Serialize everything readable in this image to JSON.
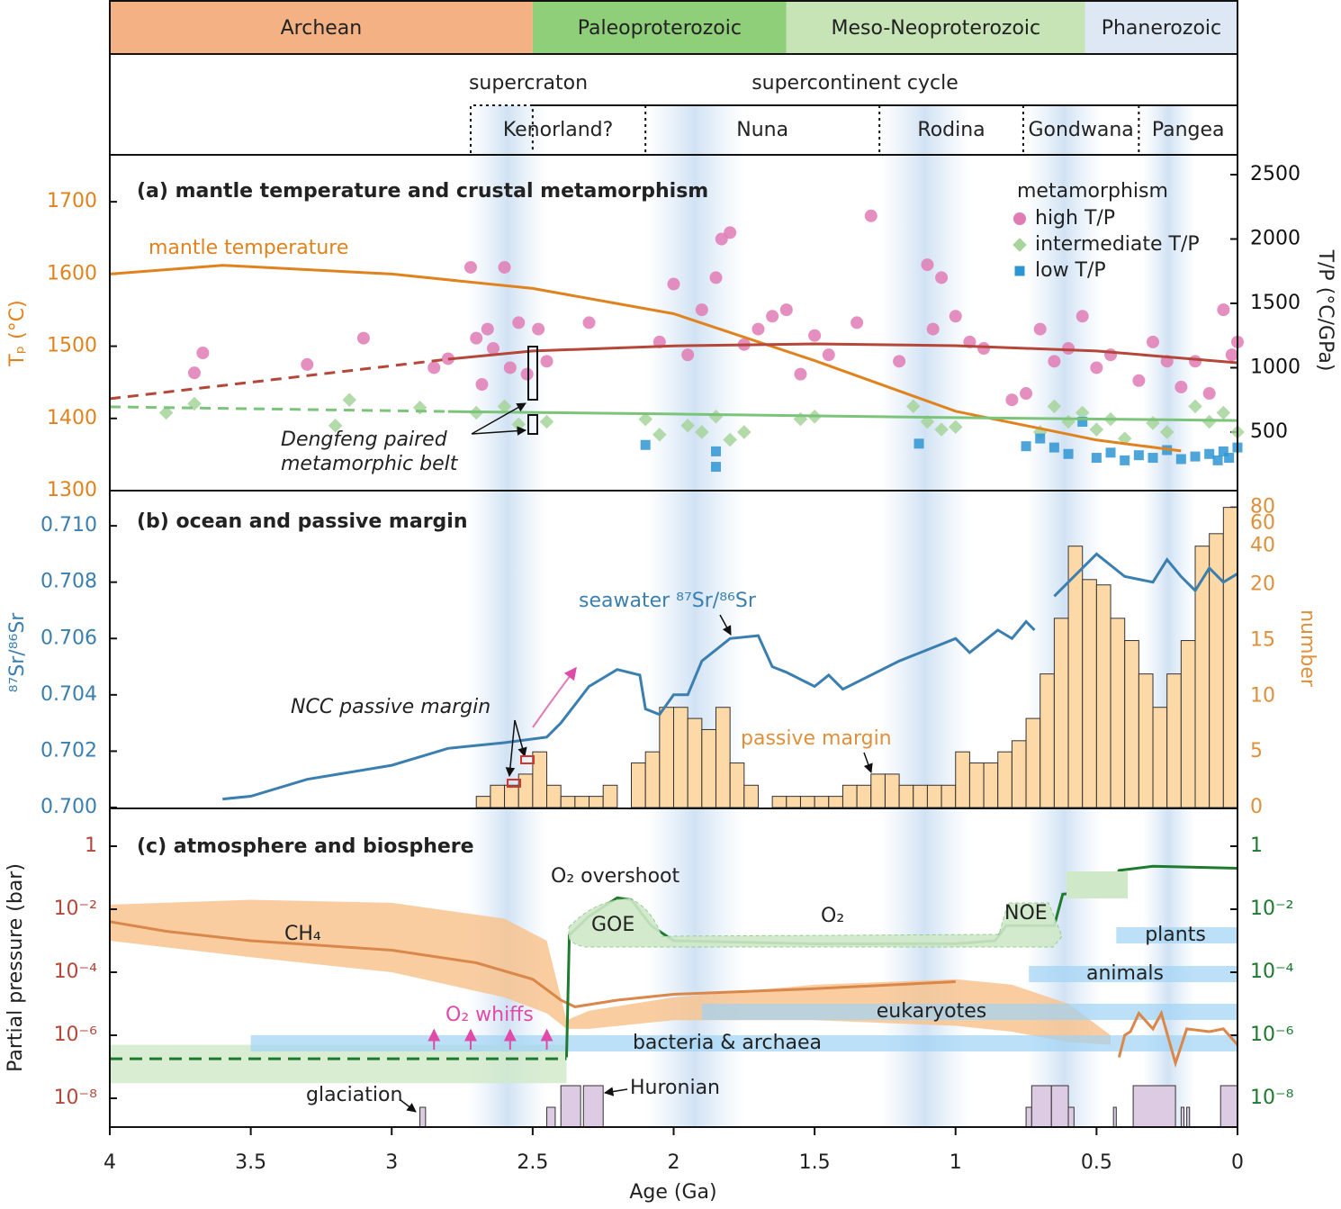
{
  "chart_data": [
    {
      "type": "timeline",
      "eras": [
        {
          "name": "Archean",
          "start": 4,
          "end": 2.5,
          "color": "#f4b183"
        },
        {
          "name": "Paleoproterozoic",
          "start": 2.5,
          "end": 1.6,
          "color": "#8fcf79"
        },
        {
          "name": "Meso-Neoproterozoic",
          "start": 1.6,
          "end": 0.54,
          "color": "#c6e4b5"
        },
        {
          "name": "Phanerozoic",
          "start": 0.54,
          "end": 0,
          "color": "#dde8f4"
        }
      ],
      "supercraton": {
        "label": "supercraton",
        "start": 2.72,
        "end": 2.5
      },
      "cycle_label": "supercontinent cycle",
      "supercontinents": [
        {
          "name": "Kenorland?",
          "start": 2.72,
          "end": 2.1
        },
        {
          "name": "Nuna",
          "start": 2.1,
          "end": 1.27
        },
        {
          "name": "Rodina",
          "start": 1.27,
          "end": 0.76
        },
        {
          "name": "Gondwana",
          "start": 0.76,
          "end": 0.35
        },
        {
          "name": "Pangea",
          "start": 0.35,
          "end": 0
        }
      ],
      "bands": [
        [
          2.73,
          2.45
        ],
        [
          2.1,
          1.75
        ],
        [
          1.27,
          0.95
        ],
        [
          0.75,
          0.48
        ],
        [
          0.34,
          0.15
        ]
      ]
    },
    {
      "type": "scatter",
      "title": "(a) mantle temperature and crustal metamorphism",
      "xlim": [
        4,
        0
      ],
      "ylim": [
        1300,
        1765
      ],
      "yticks": [
        1300,
        1400,
        1500,
        1600,
        1700
      ],
      "ylabel": "Tₚ (°C)",
      "ycolor": "#e0821e",
      "y2lim": [
        45,
        2654
      ],
      "y2ticks": [
        500,
        1000,
        1500,
        2000,
        2500
      ],
      "y2label": "T/P (°C/GPa)",
      "y2color": "#111111",
      "legend_title": "metamorphism",
      "legend": "upper right",
      "annotation": [
        "Dengfeng paired",
        "metamorphic belt"
      ],
      "lines": [
        {
          "name": "mantle temperature",
          "color": "#e0821e",
          "axis": "y",
          "style": "solid",
          "x": [
            4,
            3.6,
            3,
            2.5,
            2,
            1.5,
            1,
            0.5,
            0.2
          ],
          "values": [
            1600,
            1612,
            1600,
            1580,
            1545,
            1480,
            1410,
            1370,
            1355
          ]
        },
        {
          "color": "#b5473a",
          "axis": "y2",
          "style": "dashed",
          "x": [
            4,
            2.8
          ],
          "values": [
            759,
            1066
          ]
        },
        {
          "color": "#b5473a",
          "axis": "y2",
          "style": "solid",
          "x": [
            2.8,
            2.5,
            2,
            1.5,
            1,
            0.5,
            0
          ],
          "values": [
            1066,
            1130,
            1170,
            1185,
            1171,
            1130,
            1038
          ]
        },
        {
          "color": "#7cc47a",
          "axis": "y2",
          "style": "dashed",
          "x": [
            4,
            2.8
          ],
          "values": [
            696,
            660
          ]
        },
        {
          "color": "#7cc47a",
          "axis": "y2",
          "style": "solid",
          "x": [
            2.8,
            2,
            1,
            0
          ],
          "values": [
            660,
            640,
            612,
            590
          ]
        }
      ],
      "series": [
        {
          "name": "high T/P",
          "color": "#e07bb5",
          "marker": "circle",
          "axis": "y2",
          "x": [
            3.7,
            3.67,
            3.3,
            3.1,
            2.85,
            2.8,
            2.72,
            2.7,
            2.68,
            2.66,
            2.64,
            2.6,
            2.58,
            2.55,
            2.52,
            2.48,
            2.45,
            2.3,
            2.05,
            2,
            1.95,
            1.9,
            1.85,
            1.83,
            1.8,
            1.75,
            1.7,
            1.65,
            1.6,
            1.55,
            1.5,
            1.45,
            1.35,
            1.3,
            1.2,
            1.1,
            1.08,
            1.05,
            1,
            0.95,
            0.9,
            0.8,
            0.75,
            0.7,
            0.65,
            0.6,
            0.55,
            0.5,
            0.45,
            0.35,
            0.3,
            0.25,
            0.2,
            0.15,
            0.1,
            0.05,
            0.02,
            0
          ],
          "values": [
            960,
            1115,
            1025,
            1230,
            1000,
            1070,
            1780,
            1230,
            870,
            1300,
            1150,
            1780,
            1000,
            1350,
            950,
            1300,
            1050,
            1350,
            1200,
            1650,
            1100,
            1450,
            1700,
            2000,
            2050,
            1180,
            1300,
            1400,
            1450,
            950,
            1250,
            1100,
            1350,
            2180,
            1050,
            1800,
            1300,
            1700,
            1400,
            1200,
            1150,
            750,
            800,
            1300,
            1050,
            1150,
            1400,
            1000,
            1100,
            900,
            1200,
            1050,
            850,
            1050,
            800,
            1450,
            1100,
            1200
          ]
        },
        {
          "name": "intermediate T/P",
          "color": "#a6d49a",
          "marker": "diamond",
          "axis": "y2",
          "x": [
            3.8,
            3.7,
            3.2,
            3.15,
            2.9,
            2.7,
            2.6,
            2.55,
            2.45,
            2.1,
            2.05,
            1.95,
            1.9,
            1.85,
            1.8,
            1.75,
            1.55,
            1.5,
            1.15,
            1.1,
            1.05,
            1,
            0.7,
            0.65,
            0.6,
            0.55,
            0.5,
            0.45,
            0.4,
            0.3,
            0.25,
            0.15,
            0.1,
            0.05,
            0
          ],
          "values": [
            650,
            720,
            550,
            750,
            690,
            650,
            700,
            560,
            580,
            600,
            480,
            550,
            500,
            620,
            440,
            500,
            600,
            620,
            700,
            580,
            520,
            540,
            500,
            700,
            580,
            650,
            520,
            600,
            450,
            570,
            500,
            700,
            580,
            650,
            500
          ]
        },
        {
          "name": "low T/P",
          "color": "#2e95d3",
          "marker": "square",
          "axis": "y2",
          "x": [
            2.1,
            1.85,
            1.85,
            1.13,
            0.75,
            0.7,
            0.65,
            0.6,
            0.55,
            0.5,
            0.45,
            0.4,
            0.35,
            0.3,
            0.25,
            0.2,
            0.15,
            0.1,
            0.07,
            0.05,
            0.03,
            0
          ],
          "values": [
            400,
            350,
            230,
            410,
            390,
            450,
            380,
            330,
            580,
            300,
            340,
            280,
            320,
            300,
            360,
            290,
            310,
            330,
            280,
            350,
            300,
            380
          ]
        }
      ]
    },
    {
      "type": "histogram",
      "title": "(b) ocean and passive margin",
      "xlim": [
        4,
        0
      ],
      "ylim": [
        0.7,
        0.71125
      ],
      "yticks": [
        {
          "value": 0.7,
          "label": "0.700"
        },
        {
          "value": 0.702,
          "label": "0.702"
        },
        {
          "value": 0.704,
          "label": "0.704"
        },
        {
          "value": 0.706,
          "label": "0.706"
        },
        {
          "value": 0.708,
          "label": "0.708"
        },
        {
          "value": 0.71,
          "label": "0.710"
        }
      ],
      "ylabel": "⁸⁷Sr/⁸⁶Sr",
      "ycolor": "#3a7fb0",
      "y2lim": [
        0,
        108
      ],
      "y2_log_above": 20,
      "y2ticks": [
        0,
        5,
        10,
        15,
        20,
        40,
        60,
        80
      ],
      "y2label": "number",
      "y2color": "#e0903a",
      "line": {
        "name": "seawater ⁸⁷Sr/⁸⁶Sr",
        "color": "#3a7fb0",
        "x": [
          3.6,
          3.5,
          3.3,
          3.0,
          2.8,
          2.6,
          2.45,
          2.4,
          2.3,
          2.2,
          2.12,
          2.1,
          2.05,
          2.0,
          1.95,
          1.9,
          1.8,
          1.7,
          1.65,
          1.6,
          1.5,
          1.45,
          1.4,
          1.2,
          1.0,
          0.95,
          0.9,
          0.85,
          0.8,
          0.75,
          0.72,
          0.7,
          0.65,
          0.6,
          0.5,
          0.4,
          0.3,
          0.25,
          0.2,
          0.15,
          0.1,
          0.05,
          0
        ],
        "values": [
          0.7003,
          0.7004,
          0.701,
          0.7015,
          0.7021,
          0.7023,
          0.7025,
          0.703,
          0.7043,
          0.7049,
          0.7047,
          0.7035,
          0.7033,
          0.704,
          0.704,
          0.7052,
          0.706,
          0.7061,
          0.705,
          0.7048,
          0.7043,
          0.7047,
          0.7042,
          0.7052,
          0.706,
          0.7055,
          0.7059,
          0.7063,
          0.706,
          0.7066,
          0.7063,
          null,
          0.7075,
          0.708,
          0.709,
          0.7082,
          0.708,
          0.7088,
          0.7082,
          0.7077,
          0.7085,
          0.708,
          0.7083
        ]
      },
      "histogram": {
        "name": "passive margin",
        "color": "#fdd9a8",
        "bins": [
          2.7,
          2.65,
          2.6,
          2.55,
          2.5,
          2.45,
          2.4,
          2.35,
          2.3,
          2.25,
          2.2,
          2.15,
          2.1,
          2.05,
          2,
          1.95,
          1.9,
          1.85,
          1.8,
          1.75,
          1.7,
          1.65,
          1.6,
          1.55,
          1.5,
          1.45,
          1.4,
          1.35,
          1.3,
          1.25,
          1.2,
          1.15,
          1.1,
          1.05,
          1,
          0.95,
          0.9,
          0.85,
          0.8,
          0.75,
          0.7,
          0.65,
          0.6,
          0.55,
          0.5,
          0.45,
          0.4,
          0.35,
          0.3,
          0.25,
          0.2,
          0.15,
          0.1,
          0.05,
          0
        ],
        "counts": [
          1,
          2,
          2,
          3,
          5,
          2,
          1,
          1,
          1,
          2,
          0,
          4,
          5,
          9,
          9,
          8,
          7,
          9,
          4,
          2,
          0,
          1,
          1,
          1,
          1,
          1,
          2,
          2,
          3,
          3,
          2,
          2,
          2,
          2,
          5,
          4,
          4,
          5,
          6,
          8,
          12,
          17,
          40,
          22,
          20,
          17,
          15,
          12,
          9,
          12,
          15,
          40,
          50,
          80
        ]
      },
      "annotation": "NCC passive margin"
    },
    {
      "type": "line",
      "title": "(c) atmosphere and biosphere",
      "xlim": [
        4,
        0
      ],
      "xticks": [
        4,
        3.5,
        3,
        2.5,
        2,
        1.5,
        1,
        0.5,
        0
      ],
      "xlabel": "Age (Ga)",
      "yscale": "log",
      "ylim": [
        1.22e-09,
        15.85
      ],
      "yticks": [
        {
          "value": 1e-08,
          "label": "10⁻⁸"
        },
        {
          "value": 1e-06,
          "label": "10⁻⁶"
        },
        {
          "value": 0.0001,
          "label": "10⁻⁴"
        },
        {
          "value": 0.01,
          "label": "10⁻²"
        },
        1
      ],
      "y2ticks": [
        {
          "value": 1e-08,
          "label": "10⁻⁸"
        },
        {
          "value": 1e-06,
          "label": "10⁻⁶"
        },
        {
          "value": 0.0001,
          "label": "10⁻⁴"
        },
        {
          "value": 0.01,
          "label": "10⁻²"
        },
        1
      ],
      "ylabel": "Partial pressure (bar)",
      "ycolor": "#b5473a",
      "y2color": "#1e7a2e",
      "series": [
        {
          "color": "#d9874a",
          "style": "solid",
          "x": [
            4,
            3.8,
            3.5,
            3,
            2.7,
            2.5,
            2.4,
            2.35,
            2.2,
            2,
            1.5,
            1,
            0.8,
            0.42,
            0.4,
            0.38,
            0.35,
            0.3,
            0.27,
            0.22,
            0.18,
            0.1,
            0.05,
            0
          ],
          "values": [
            0.004,
            0.002,
            0.001,
            0.0005,
            0.0002,
            6e-05,
            1.3e-05,
            8e-06,
            1.3e-05,
            2e-05,
            3e-05,
            5e-05,
            null,
            2e-07,
            1e-06,
            1.3e-06,
            5e-06,
            1.6e-06,
            5e-06,
            1.3e-07,
            1.6e-06,
            1.3e-06,
            1.6e-06,
            5e-07
          ]
        },
        {
          "color": "#1e7a2e",
          "style": "dashed",
          "x": [
            4,
            2.38
          ],
          "values": [
            1.8e-07,
            1.8e-07
          ]
        },
        {
          "color": "#1e7a2e",
          "style": "solid",
          "x": [
            2.38,
            2.37,
            2.3,
            2.2,
            2.15,
            2.08,
            2,
            1.5,
            1,
            0.86,
            0.82,
            0.65,
            0.62,
            0.45,
            0.42,
            0.3,
            0
          ],
          "values": [
            2e-07,
            0.0015,
            0.006,
            0.023,
            0.02,
            0.003,
            0.001,
            0.0008,
            0.0008,
            0.001,
            0.003,
            0.003,
            0.03,
            0.04,
            0.17,
            0.23,
            0.2
          ]
        }
      ],
      "bands": [
        {
          "color": "#f9c08a",
          "x": [
            4,
            3.5,
            3,
            2.6,
            2.45,
            2.38,
            2.3,
            2,
            1.5,
            1,
            0.8,
            0.6,
            0.45
          ],
          "upper": [
            0.014,
            0.02,
            0.016,
            0.005,
            0.001,
            3e-06,
            6e-06,
            1.6e-05,
            4e-05,
            6e-05,
            4e-05,
            1e-05,
            1e-06
          ],
          "lower": [
            0.001,
            0.0003,
            0.0001,
            1.6e-05,
            5e-06,
            1.6e-06,
            1.6e-06,
            3e-06,
            3e-06,
            2e-06,
            1.3e-06,
            6e-07,
            5e-07
          ]
        },
        {
          "color": "#cfe8c8",
          "x": [
            4,
            2.38
          ],
          "upper": [
            5e-07,
            5e-07
          ],
          "lower": [
            3e-08,
            3e-08
          ]
        }
      ],
      "biosphere": [
        {
          "name": "bacteria & archaea",
          "start": 3.5,
          "end": 0
        },
        {
          "name": "eukaryotes",
          "start": 1.9,
          "end": 0
        },
        {
          "name": "animals",
          "start": 0.74,
          "end": 0
        },
        {
          "name": "plants",
          "start": 0.43,
          "end": 0
        }
      ],
      "whiffs": {
        "label": "O₂ whiffs",
        "x": [
          2.85,
          2.72,
          2.58,
          2.45
        ]
      },
      "glaciations": {
        "label": "glaciation",
        "intervals": [
          [
            2.9,
            2.88
          ],
          [
            2.45,
            2.42
          ],
          [
            2.4,
            2.33
          ],
          [
            2.32,
            2.25
          ],
          [
            0.75,
            0.73
          ],
          [
            0.73,
            0.66
          ],
          [
            0.66,
            0.6
          ],
          [
            0.6,
            0.58
          ],
          [
            0.44,
            0.43
          ],
          [
            0.37,
            0.22
          ],
          [
            0.2,
            0.19
          ],
          [
            0.18,
            0.17
          ],
          [
            0.06,
            0
          ]
        ]
      },
      "labels": {
        "overshoot": "O₂ overshoot",
        "goe": "GOE",
        "o2": "O₂",
        "noe": "NOE",
        "ch4": "CH₄",
        "huronian": "Huronian"
      }
    }
  ]
}
